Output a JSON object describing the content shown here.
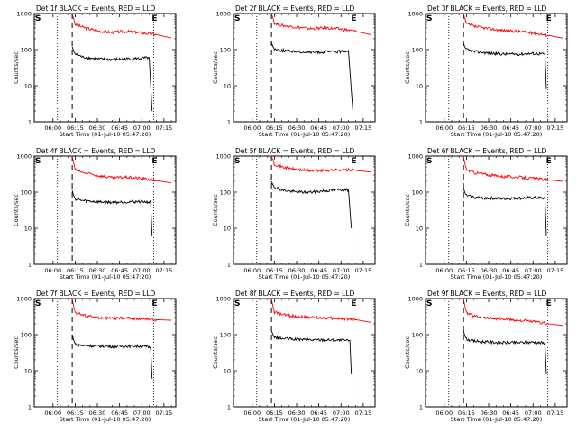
{
  "figure": {
    "ylabel": "Counts/sec",
    "xlabel": "Start Time (01-Jul-10 05:47:20)",
    "x_ticks": [
      "06:00",
      "06:15",
      "06:30",
      "06:45",
      "07:00",
      "07:15"
    ],
    "y_ticks": [
      "1",
      "10",
      "100",
      "1000"
    ],
    "marker_s": "S",
    "marker_e": "E",
    "colors": {
      "events": "#000000",
      "lld": "#ff0000",
      "axes": "#000000"
    }
  },
  "chart_data": [
    {
      "type": "line",
      "title": "Det 1f BLACK = Events, RED = LLD",
      "xlabel": "Start Time (01-Jul-10 05:47:20)",
      "ylabel": "Counts/sec",
      "y_scale": "log",
      "ylim": [
        1,
        1000
      ],
      "x_range": [
        "05:47:20",
        "07:23"
      ],
      "dotted_lines": [
        "06:03",
        "07:08"
      ],
      "dashed_line": "06:13",
      "series": [
        {
          "color": "red",
          "x": [
            "06:13",
            "06:14",
            "06:15",
            "06:20",
            "06:30",
            "06:40",
            "06:50",
            "07:00",
            "07:10",
            "07:20"
          ],
          "y": [
            1000,
            700,
            500,
            420,
            330,
            300,
            320,
            290,
            260,
            210
          ]
        },
        {
          "color": "black",
          "x": [
            "06:13",
            "06:14",
            "06:15",
            "06:20",
            "06:30",
            "06:40",
            "06:50",
            "07:00",
            "07:05",
            "07:07"
          ],
          "y": [
            120,
            90,
            75,
            62,
            55,
            53,
            55,
            57,
            60,
            2
          ]
        }
      ]
    },
    {
      "type": "line",
      "title": "Det 2f BLACK = Events, RED = LLD",
      "xlabel": "Start Time (01-Jul-10 05:47:20)",
      "ylabel": "Counts/sec",
      "y_scale": "log",
      "ylim": [
        1,
        1000
      ],
      "x_range": [
        "05:47:20",
        "07:23"
      ],
      "dotted_lines": [
        "06:03",
        "07:08"
      ],
      "dashed_line": "06:13",
      "series": [
        {
          "color": "red",
          "x": [
            "06:13",
            "06:14",
            "06:15",
            "06:20",
            "06:30",
            "06:40",
            "06:50",
            "07:00",
            "07:10",
            "07:20"
          ],
          "y": [
            1000,
            750,
            550,
            470,
            420,
            380,
            400,
            370,
            320,
            260
          ]
        },
        {
          "color": "black",
          "x": [
            "06:13",
            "06:14",
            "06:15",
            "06:20",
            "06:30",
            "06:40",
            "06:50",
            "07:00",
            "07:05",
            "07:08"
          ],
          "y": [
            160,
            120,
            105,
            95,
            88,
            84,
            86,
            88,
            95,
            2
          ]
        }
      ]
    },
    {
      "type": "line",
      "title": "Det 3f BLACK = Events, RED = LLD",
      "xlabel": "Start Time (01-Jul-10 05:47:20)",
      "ylabel": "Counts/sec",
      "y_scale": "log",
      "ylim": [
        1,
        1000
      ],
      "x_range": [
        "05:47:20",
        "07:23"
      ],
      "dotted_lines": [
        "06:03",
        "07:10"
      ],
      "dashed_line": "06:13",
      "series": [
        {
          "color": "red",
          "x": [
            "06:13",
            "06:14",
            "06:15",
            "06:20",
            "06:30",
            "06:40",
            "06:50",
            "07:00",
            "07:10",
            "07:20"
          ],
          "y": [
            1000,
            700,
            520,
            440,
            380,
            340,
            320,
            290,
            250,
            210
          ]
        },
        {
          "color": "black",
          "x": [
            "06:13",
            "06:14",
            "06:15",
            "06:20",
            "06:30",
            "06:40",
            "06:50",
            "07:00",
            "07:08",
            "07:09"
          ],
          "y": [
            150,
            115,
            100,
            88,
            80,
            75,
            75,
            78,
            75,
            8
          ]
        }
      ]
    },
    {
      "type": "line",
      "title": "Det 4f BLACK = Events, RED = LLD",
      "xlabel": "Start Time (01-Jul-10 05:47:20)",
      "ylabel": "Counts/sec",
      "y_scale": "log",
      "ylim": [
        1,
        1000
      ],
      "x_range": [
        "05:47:20",
        "07:23"
      ],
      "dotted_lines": [
        "06:03",
        "07:08"
      ],
      "dashed_line": "06:13",
      "series": [
        {
          "color": "red",
          "x": [
            "06:13",
            "06:14",
            "06:15",
            "06:20",
            "06:30",
            "06:40",
            "06:50",
            "07:00",
            "07:10",
            "07:20"
          ],
          "y": [
            1000,
            650,
            420,
            350,
            290,
            250,
            260,
            240,
            210,
            180
          ]
        },
        {
          "color": "black",
          "x": [
            "06:13",
            "06:14",
            "06:15",
            "06:20",
            "06:30",
            "06:40",
            "06:50",
            "07:00",
            "07:06",
            "07:07"
          ],
          "y": [
            110,
            80,
            65,
            58,
            54,
            52,
            54,
            55,
            52,
            6
          ]
        }
      ]
    },
    {
      "type": "line",
      "title": "Det 5f BLACK = Events, RED = LLD",
      "xlabel": "Start Time (01-Jul-10 05:47:20)",
      "ylabel": "Counts/sec",
      "y_scale": "log",
      "ylim": [
        1,
        1000
      ],
      "x_range": [
        "05:47:20",
        "07:23"
      ],
      "dotted_lines": [
        "06:03",
        "07:08"
      ],
      "dashed_line": "06:13",
      "series": [
        {
          "color": "red",
          "x": [
            "06:13",
            "06:14",
            "06:15",
            "06:20",
            "06:30",
            "06:40",
            "06:50",
            "07:00",
            "07:10",
            "07:20"
          ],
          "y": [
            1000,
            800,
            600,
            500,
            420,
            390,
            400,
            420,
            400,
            360
          ]
        },
        {
          "color": "black",
          "x": [
            "06:13",
            "06:14",
            "06:15",
            "06:20",
            "06:30",
            "06:40",
            "06:50",
            "07:00",
            "07:05",
            "07:07"
          ],
          "y": [
            200,
            160,
            140,
            115,
            100,
            100,
            110,
            118,
            115,
            10
          ]
        }
      ]
    },
    {
      "type": "line",
      "title": "Det 6f BLACK = Events, RED = LLD",
      "xlabel": "Start Time (01-Jul-10 05:47:20)",
      "ylabel": "Counts/sec",
      "y_scale": "log",
      "ylim": [
        1,
        1000
      ],
      "x_range": [
        "05:47:20",
        "07:23"
      ],
      "dotted_lines": [
        "06:03",
        "07:10"
      ],
      "dashed_line": "06:13",
      "series": [
        {
          "color": "red",
          "x": [
            "06:13",
            "06:14",
            "06:15",
            "06:20",
            "06:30",
            "06:40",
            "06:50",
            "07:00",
            "07:10",
            "07:20"
          ],
          "y": [
            1000,
            600,
            420,
            350,
            300,
            270,
            260,
            240,
            220,
            200
          ]
        },
        {
          "color": "black",
          "x": [
            "06:13",
            "06:14",
            "06:15",
            "06:20",
            "06:30",
            "06:40",
            "06:50",
            "07:00",
            "07:08",
            "07:09"
          ],
          "y": [
            130,
            95,
            80,
            72,
            68,
            66,
            68,
            70,
            68,
            6
          ]
        }
      ]
    },
    {
      "type": "line",
      "title": "Det 7f BLACK = Events, RED = LLD",
      "xlabel": "Start Time (01-Jul-10 05:47:20)",
      "ylabel": "Counts/sec",
      "y_scale": "log",
      "ylim": [
        1,
        1000
      ],
      "x_range": [
        "05:47:20",
        "07:23"
      ],
      "dotted_lines": [
        "06:03",
        "07:08"
      ],
      "dashed_line": "06:13",
      "series": [
        {
          "color": "red",
          "x": [
            "06:13",
            "06:14",
            "06:15",
            "06:20",
            "06:30",
            "06:40",
            "06:50",
            "07:00",
            "07:10",
            "07:20"
          ],
          "y": [
            1000,
            600,
            420,
            350,
            300,
            280,
            290,
            270,
            260,
            250
          ]
        },
        {
          "color": "black",
          "x": [
            "06:13",
            "06:14",
            "06:15",
            "06:20",
            "06:30",
            "06:40",
            "06:50",
            "07:00",
            "07:06",
            "07:07"
          ],
          "y": [
            100,
            70,
            55,
            50,
            48,
            47,
            48,
            48,
            45,
            6
          ]
        }
      ]
    },
    {
      "type": "line",
      "title": "Det 8f BLACK = Events, RED = LLD",
      "xlabel": "Start Time (01-Jul-10 05:47:20)",
      "ylabel": "Counts/sec",
      "y_scale": "log",
      "ylim": [
        1,
        1000
      ],
      "x_range": [
        "05:47:20",
        "07:23"
      ],
      "dotted_lines": [
        "06:03",
        "07:08"
      ],
      "dashed_line": "06:13",
      "series": [
        {
          "color": "red",
          "x": [
            "06:13",
            "06:14",
            "06:15",
            "06:20",
            "06:30",
            "06:40",
            "06:50",
            "07:00",
            "07:10",
            "07:20"
          ],
          "y": [
            1000,
            600,
            420,
            360,
            320,
            300,
            290,
            280,
            260,
            220
          ]
        },
        {
          "color": "black",
          "x": [
            "06:13",
            "06:14",
            "06:15",
            "06:20",
            "06:30",
            "06:40",
            "06:50",
            "07:00",
            "07:06",
            "07:07"
          ],
          "y": [
            130,
            100,
            85,
            78,
            74,
            72,
            72,
            70,
            68,
            8
          ]
        }
      ]
    },
    {
      "type": "line",
      "title": "Det 9f BLACK = Events, RED = LLD",
      "xlabel": "Start Time (01-Jul-10 05:47:20)",
      "ylabel": "Counts/sec",
      "y_scale": "log",
      "ylim": [
        1,
        1000
      ],
      "x_range": [
        "05:47:20",
        "07:23"
      ],
      "dotted_lines": [
        "06:03",
        "07:10"
      ],
      "dashed_line": "06:13",
      "series": [
        {
          "color": "red",
          "x": [
            "06:13",
            "06:14",
            "06:15",
            "06:20",
            "06:30",
            "06:40",
            "06:50",
            "07:00",
            "07:10",
            "07:20"
          ],
          "y": [
            1000,
            600,
            400,
            330,
            290,
            270,
            250,
            230,
            200,
            180
          ]
        },
        {
          "color": "black",
          "x": [
            "06:13",
            "06:14",
            "06:15",
            "06:20",
            "06:30",
            "06:40",
            "06:50",
            "07:00",
            "07:08",
            "07:09"
          ],
          "y": [
            130,
            90,
            75,
            66,
            62,
            60,
            60,
            62,
            58,
            8
          ]
        }
      ]
    }
  ]
}
